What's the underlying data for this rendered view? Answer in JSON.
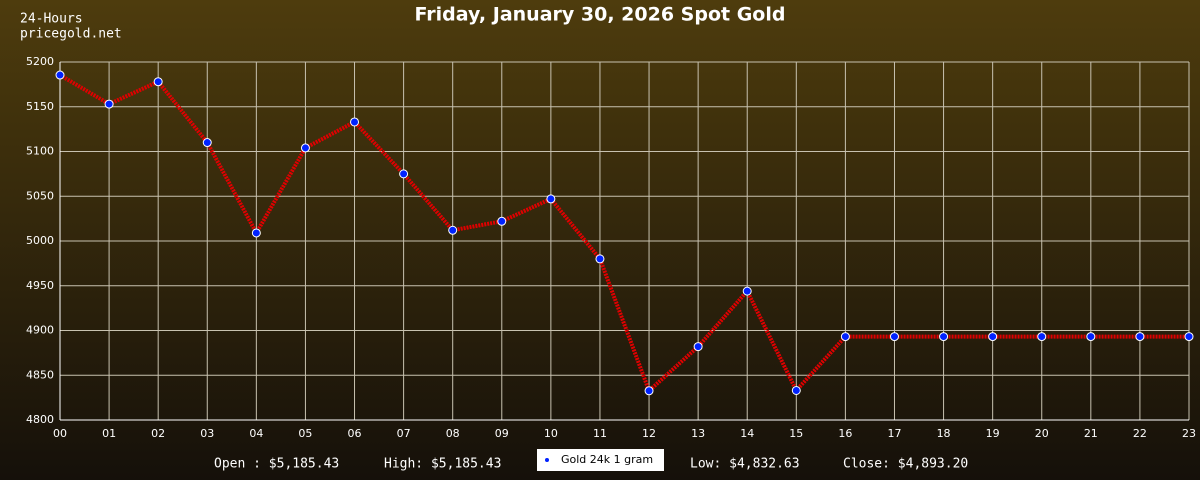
{
  "chart_data": {
    "type": "line",
    "title": "Friday, January 30, 2026 Spot Gold",
    "corner_labels": [
      "24-Hours",
      "pricegold.net"
    ],
    "categories": [
      "00",
      "01",
      "02",
      "03",
      "04",
      "05",
      "06",
      "07",
      "08",
      "09",
      "10",
      "11",
      "12",
      "13",
      "14",
      "15",
      "16",
      "17",
      "18",
      "19",
      "20",
      "21",
      "22",
      "23"
    ],
    "series": [
      {
        "name": "Gold 24k 1 gram",
        "color": "#e00000",
        "marker_color": "#0022ff",
        "values": [
          5185.43,
          5153,
          5178,
          5110,
          5009,
          5104,
          5133,
          5075,
          5012,
          5022,
          5047,
          4980,
          4832.63,
          4882,
          4944,
          4833,
          4893.2,
          4893.2,
          4893.2,
          4893.2,
          4893.2,
          4893.2,
          4893.2,
          4893.2
        ]
      }
    ],
    "ylim": [
      4800,
      5200
    ],
    "yticks": [
      4800,
      4850,
      4900,
      4950,
      5000,
      5050,
      5100,
      5150,
      5200
    ],
    "grid": true,
    "summary": [
      "Open : $5,185.43",
      "High: $5,185.43",
      "Low: $4,832.63",
      "Close: $4,893.20"
    ]
  }
}
